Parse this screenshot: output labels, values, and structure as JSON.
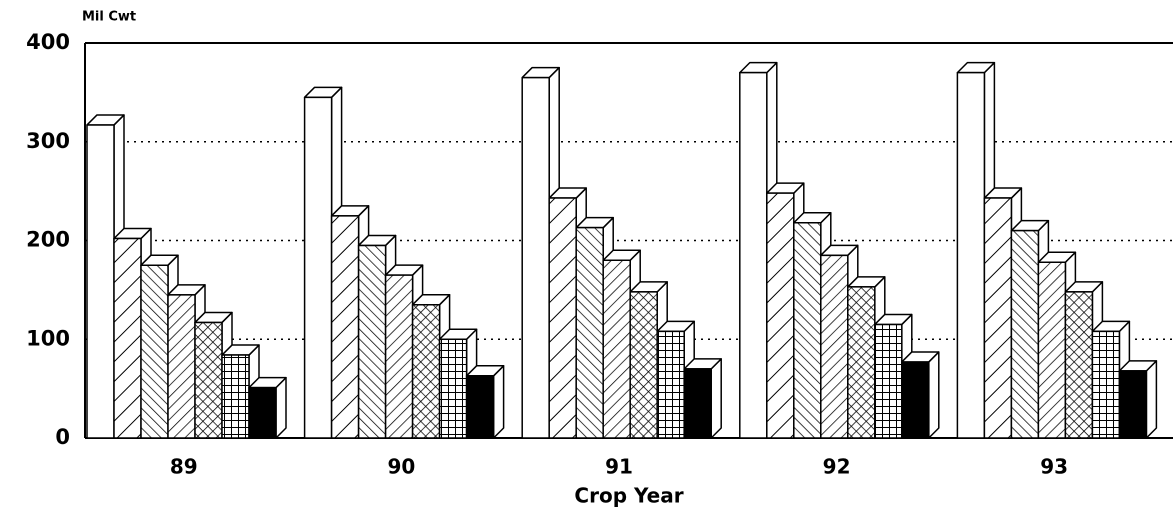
{
  "chart_data": {
    "type": "bar3d",
    "y_label": "Mil Cwt",
    "x_label": "Crop Year",
    "categories": [
      "89",
      "90",
      "91",
      "92",
      "93"
    ],
    "ylim": [
      0,
      400
    ],
    "yticks": [
      0,
      100,
      200,
      300,
      400
    ],
    "grid": true,
    "series": [
      {
        "pattern": "plain",
        "values": [
          317,
          345,
          365,
          370,
          370
        ]
      },
      {
        "pattern": "wide-back-hatch",
        "values": [
          202,
          225,
          243,
          248,
          243
        ]
      },
      {
        "pattern": "forward-hatch",
        "values": [
          175,
          195,
          213,
          218,
          210
        ]
      },
      {
        "pattern": "back-hatch",
        "values": [
          145,
          165,
          180,
          185,
          178
        ]
      },
      {
        "pattern": "crosshatch",
        "values": [
          117,
          135,
          148,
          153,
          148
        ]
      },
      {
        "pattern": "grid",
        "values": [
          84,
          100,
          108,
          115,
          108
        ]
      },
      {
        "pattern": "solid",
        "values": [
          51,
          63,
          70,
          77,
          68
        ]
      }
    ]
  }
}
